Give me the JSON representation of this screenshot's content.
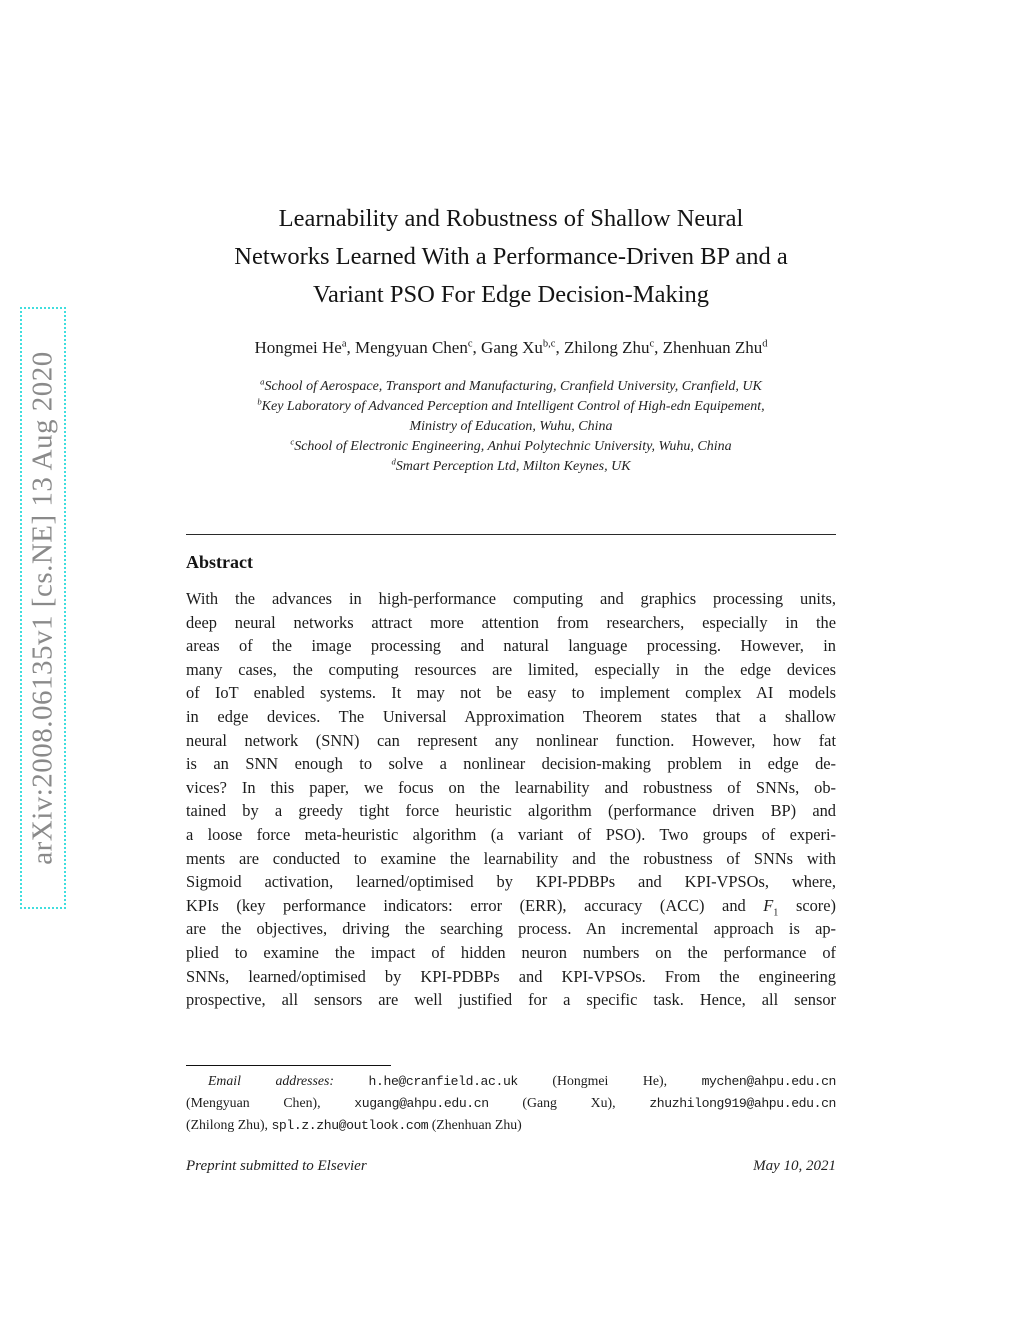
{
  "colors": {
    "page_bg": "#ffffff",
    "text": "#1a1a1a",
    "watermark_text": "#8a8a8a",
    "watermark_border": "#40dede"
  },
  "watermark": "arXiv:2008.06135v1  [cs.NE]  13 Aug 2020",
  "title_lines": [
    "Learnability and Robustness of Shallow Neural",
    "Networks Learned With a Performance-Driven BP and a",
    "Variant PSO For Edge Decision-Making"
  ],
  "authors_segments": [
    {
      "t": "Hongmei He",
      "s": "r"
    },
    {
      "t": "a",
      "s": "sup"
    },
    {
      "t": ", Mengyuan Chen",
      "s": "r"
    },
    {
      "t": "c",
      "s": "sup"
    },
    {
      "t": ", Gang Xu",
      "s": "r"
    },
    {
      "t": "b,c",
      "s": "sup"
    },
    {
      "t": ", Zhilong Zhu",
      "s": "r"
    },
    {
      "t": "c",
      "s": "sup"
    },
    {
      "t": ", Zhenhuan Zhu",
      "s": "r"
    },
    {
      "t": "d",
      "s": "sup"
    }
  ],
  "affiliations": [
    {
      "sup": "a",
      "text": "School of Aerospace, Transport and Manufacturing, Cranfield University, Cranfield, UK"
    },
    {
      "sup": "b",
      "text": "Key Laboratory of Advanced Perception and Intelligent Control of High-edn Equipement,\nMinistry of Education, Wuhu, China"
    },
    {
      "sup": "c",
      "text": "School of Electronic Engineering, Anhui Polytechnic University, Wuhu, China"
    },
    {
      "sup": "d",
      "text": "Smart Perception Ltd, Milton Keynes, UK"
    }
  ],
  "abstract": {
    "heading": "Abstract",
    "lines": [
      [
        {
          "t": "With the advances in high-performance computing and graphics processing units,",
          "s": "r"
        }
      ],
      [
        {
          "t": "deep neural networks attract more attention from researchers, especially in the",
          "s": "r"
        }
      ],
      [
        {
          "t": "areas of the image processing and natural language processing. However, in",
          "s": "r"
        }
      ],
      [
        {
          "t": "many cases, the computing resources are limited, especially in the edge devices",
          "s": "r"
        }
      ],
      [
        {
          "t": "of IoT enabled systems. It may not be easy to implement complex AI models",
          "s": "r"
        }
      ],
      [
        {
          "t": "in edge devices. The Universal Approximation Theorem states that a shallow",
          "s": "r"
        }
      ],
      [
        {
          "t": "neural network (SNN) can represent any nonlinear function. However, how fat",
          "s": "r"
        }
      ],
      [
        {
          "t": "is an SNN enough to solve a nonlinear decision-making problem in edge de-",
          "s": "r"
        }
      ],
      [
        {
          "t": "vices? In this paper, we focus on the learnability and robustness of SNNs, ob-",
          "s": "r"
        }
      ],
      [
        {
          "t": "tained by a greedy tight force heuristic algorithm (performance driven BP) and",
          "s": "r"
        }
      ],
      [
        {
          "t": "a loose force meta-heuristic algorithm (a variant of PSO). Two groups of experi-",
          "s": "r"
        }
      ],
      [
        {
          "t": "ments are conducted to examine the learnability and the robustness of SNNs with",
          "s": "r"
        }
      ],
      [
        {
          "t": "Sigmoid activation, learned/optimised by KPI-PDBPs and KPI-VPSOs, where,",
          "s": "r"
        }
      ],
      [
        {
          "t": "KPIs (key performance indicators: error (ERR), accuracy (ACC) and ",
          "s": "r"
        },
        {
          "t": "F",
          "s": "if"
        },
        {
          "t": "1",
          "s": "sub"
        },
        {
          "t": " score)",
          "s": "r"
        }
      ],
      [
        {
          "t": "are the objectives, driving the searching process. An incremental approach is ap-",
          "s": "r"
        }
      ],
      [
        {
          "t": "plied to examine the impact of hidden neuron numbers on the performance of",
          "s": "r"
        }
      ],
      [
        {
          "t": "SNNs, learned/optimised by KPI-PDBPs and KPI-VPSOs. From the engineering",
          "s": "r"
        }
      ],
      [
        {
          "t": "prospective, all sensors are well justified for a specific task. Hence, all sensor",
          "s": "r"
        }
      ]
    ]
  },
  "footnote": {
    "lines": [
      [
        {
          "t": "Email addresses:",
          "s": "i"
        },
        {
          "t": " ",
          "s": "r"
        },
        {
          "t": "h.he@cranfield.ac.uk",
          "s": "m"
        },
        {
          "t": " (Hongmei He), ",
          "s": "r"
        },
        {
          "t": "mychen@ahpu.edu.cn",
          "s": "m"
        }
      ],
      [
        {
          "t": "(Mengyuan Chen), ",
          "s": "r"
        },
        {
          "t": "xugang@ahpu.edu.cn",
          "s": "m"
        },
        {
          "t": " (Gang Xu), ",
          "s": "r"
        },
        {
          "t": "zhuzhilong919@ahpu.edu.cn",
          "s": "m"
        }
      ],
      [
        {
          "t": "(Zhilong Zhu), ",
          "s": "r"
        },
        {
          "t": "spl.z.zhu@outlook.com",
          "s": "m"
        },
        {
          "t": " (Zhenhuan Zhu)",
          "s": "r"
        }
      ]
    ]
  },
  "footer": {
    "left": "Preprint submitted to Elsevier",
    "right": "May 10, 2021"
  }
}
